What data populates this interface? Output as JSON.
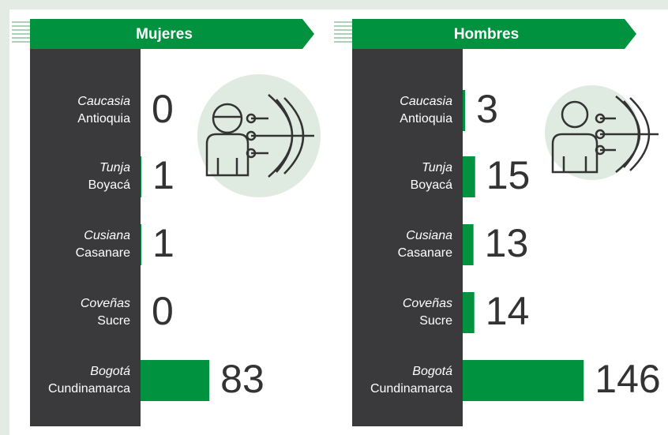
{
  "chart_data": [
    {
      "type": "bar",
      "title": "Mujeres",
      "color": "#00923f",
      "categories": [
        "Caucasia",
        "Tunja",
        "Cusiana",
        "Coveñas",
        "Bogotá"
      ],
      "regions": [
        "Antioquia",
        "Boyacá",
        "Casanare",
        "Sucre",
        "Cundinamarca"
      ],
      "values": [
        0,
        1,
        1,
        0,
        83
      ]
    },
    {
      "type": "bar",
      "title": "Hombres",
      "color": "#00923f",
      "categories": [
        "Caucasia",
        "Tunja",
        "Cusiana",
        "Coveñas",
        "Bogotá"
      ],
      "regions": [
        "Antioquia",
        "Boyacá",
        "Casanare",
        "Sucre",
        "Cundinamarca"
      ],
      "values": [
        3,
        15,
        13,
        14,
        146
      ]
    }
  ]
}
